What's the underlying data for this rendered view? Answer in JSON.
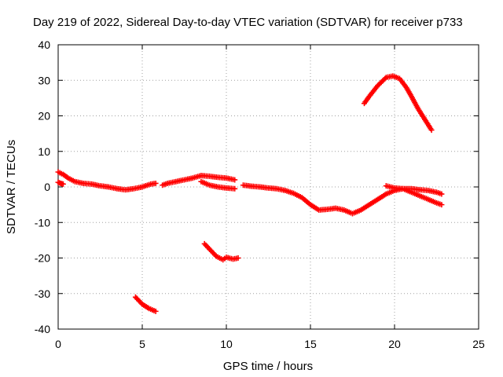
{
  "chart_data": {
    "type": "scatter",
    "title": "Day 219 of 2022, Sidereal Day-to-day VTEC variation (SDTVAR) for receiver p733",
    "xlabel": "GPS time / hours",
    "ylabel": "SDTVAR / TECUs",
    "xlim": [
      0,
      25
    ],
    "ylim": [
      -40,
      40
    ],
    "xticks": [
      0,
      5,
      10,
      15,
      20,
      25
    ],
    "yticks": [
      -40,
      -30,
      -20,
      -10,
      0,
      10,
      20,
      30,
      40
    ],
    "xtick_labels": [
      "0",
      "5",
      "10",
      "15",
      "20",
      "25"
    ],
    "ytick_labels": [
      "-40",
      "-30",
      "-20",
      "-10",
      "0",
      "10",
      "20",
      "30",
      "40"
    ],
    "grid": true,
    "marker": "plus",
    "color": "#ff0000",
    "series": [
      {
        "name": "main trace",
        "points": [
          [
            0.0,
            4.2
          ],
          [
            0.3,
            3.5
          ],
          [
            0.6,
            2.5
          ],
          [
            1.0,
            1.5
          ],
          [
            1.5,
            1.0
          ],
          [
            2.0,
            0.8
          ],
          [
            2.5,
            0.3
          ],
          [
            3.0,
            0.0
          ],
          [
            3.5,
            -0.5
          ],
          [
            4.0,
            -0.8
          ],
          [
            4.5,
            -0.5
          ],
          [
            5.0,
            0.0
          ],
          [
            5.5,
            0.8
          ],
          [
            5.8,
            1.0
          ]
        ]
      },
      {
        "name": "short low segment",
        "points": [
          [
            0.0,
            1.3
          ],
          [
            0.15,
            1.0
          ],
          [
            0.3,
            0.8
          ]
        ]
      },
      {
        "name": "morning rise",
        "points": [
          [
            6.2,
            0.5
          ],
          [
            6.5,
            1.0
          ],
          [
            7.0,
            1.5
          ],
          [
            7.5,
            2.0
          ],
          [
            8.0,
            2.5
          ],
          [
            8.5,
            3.2
          ],
          [
            9.0,
            3.0
          ],
          [
            9.5,
            2.7
          ],
          [
            10.0,
            2.5
          ],
          [
            10.5,
            2.0
          ]
        ]
      },
      {
        "name": "morning lower band",
        "points": [
          [
            8.5,
            1.5
          ],
          [
            9.0,
            0.5
          ],
          [
            9.5,
            0.0
          ],
          [
            10.0,
            -0.3
          ],
          [
            10.5,
            -0.5
          ]
        ]
      },
      {
        "name": "midday decline",
        "points": [
          [
            11.0,
            0.5
          ],
          [
            11.5,
            0.2
          ],
          [
            12.0,
            0.0
          ],
          [
            12.5,
            -0.3
          ],
          [
            13.0,
            -0.5
          ],
          [
            13.5,
            -1.0
          ],
          [
            14.0,
            -1.8
          ],
          [
            14.5,
            -3.0
          ],
          [
            15.0,
            -5.0
          ],
          [
            15.5,
            -6.5
          ],
          [
            16.0,
            -6.3
          ],
          [
            16.5,
            -6.0
          ],
          [
            17.0,
            -6.5
          ],
          [
            17.5,
            -7.5
          ],
          [
            18.0,
            -6.5
          ],
          [
            18.5,
            -5.0
          ],
          [
            19.0,
            -3.5
          ],
          [
            19.5,
            -2.0
          ],
          [
            20.0,
            -1.0
          ],
          [
            20.5,
            -0.5
          ],
          [
            21.0,
            -0.5
          ],
          [
            21.5,
            -0.8
          ],
          [
            22.0,
            -1.0
          ],
          [
            22.5,
            -1.5
          ],
          [
            22.8,
            -2.0
          ]
        ]
      },
      {
        "name": "evening lower band",
        "points": [
          [
            19.5,
            0.3
          ],
          [
            20.0,
            -0.3
          ],
          [
            20.5,
            -0.5
          ],
          [
            21.0,
            -1.5
          ],
          [
            21.5,
            -2.5
          ],
          [
            22.0,
            -3.5
          ],
          [
            22.5,
            -4.5
          ],
          [
            22.8,
            -5.0
          ]
        ]
      },
      {
        "name": "evening arc",
        "points": [
          [
            18.2,
            23.5
          ],
          [
            18.5,
            25.5
          ],
          [
            19.0,
            28.5
          ],
          [
            19.5,
            30.8
          ],
          [
            19.9,
            31.2
          ],
          [
            20.3,
            30.5
          ],
          [
            20.7,
            28.0
          ],
          [
            21.0,
            25.5
          ],
          [
            21.4,
            22.0
          ],
          [
            21.8,
            19.0
          ],
          [
            22.2,
            16.0
          ]
        ]
      },
      {
        "name": "dip near 10h",
        "points": [
          [
            8.7,
            -16.0
          ],
          [
            9.0,
            -17.5
          ],
          [
            9.4,
            -19.5
          ],
          [
            9.8,
            -20.5
          ],
          [
            10.0,
            -19.8
          ],
          [
            10.4,
            -20.3
          ],
          [
            10.7,
            -20.0
          ]
        ]
      },
      {
        "name": "dip near 5h",
        "points": [
          [
            4.6,
            -31.0
          ],
          [
            5.0,
            -33.0
          ],
          [
            5.4,
            -34.2
          ],
          [
            5.8,
            -35.0
          ]
        ]
      }
    ]
  }
}
